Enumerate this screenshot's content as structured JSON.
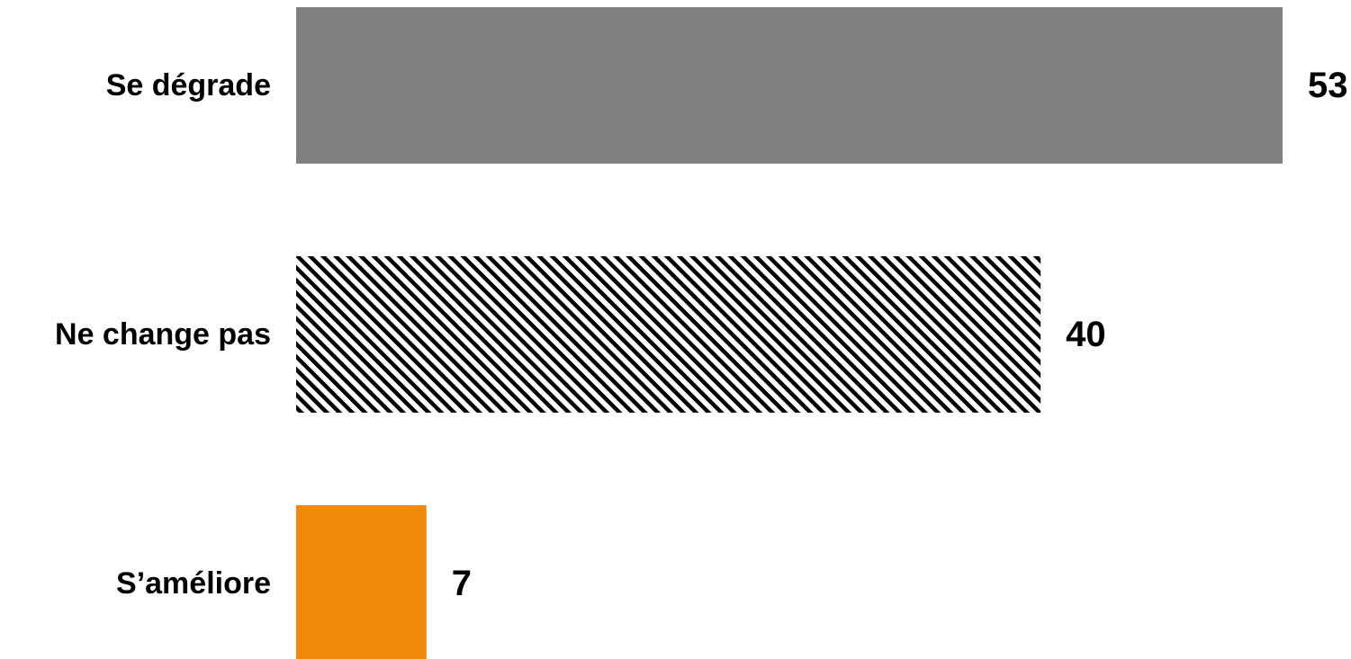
{
  "chart_data": {
    "type": "bar",
    "orientation": "horizontal",
    "categories": [
      "Se dégrade",
      "Ne change pas",
      "S’améliore"
    ],
    "values": [
      53,
      40,
      7
    ],
    "fills": [
      {
        "kind": "solid",
        "color": "#808080"
      },
      {
        "kind": "hatch",
        "color": "#000000",
        "background": "#ffffff"
      },
      {
        "kind": "solid",
        "color": "#F0890C"
      }
    ],
    "data_labels": [
      "53",
      "40",
      "7"
    ],
    "title": "",
    "xlabel": "",
    "ylabel": "",
    "xlim": [
      0,
      53
    ],
    "grid": false,
    "legend": "none"
  }
}
